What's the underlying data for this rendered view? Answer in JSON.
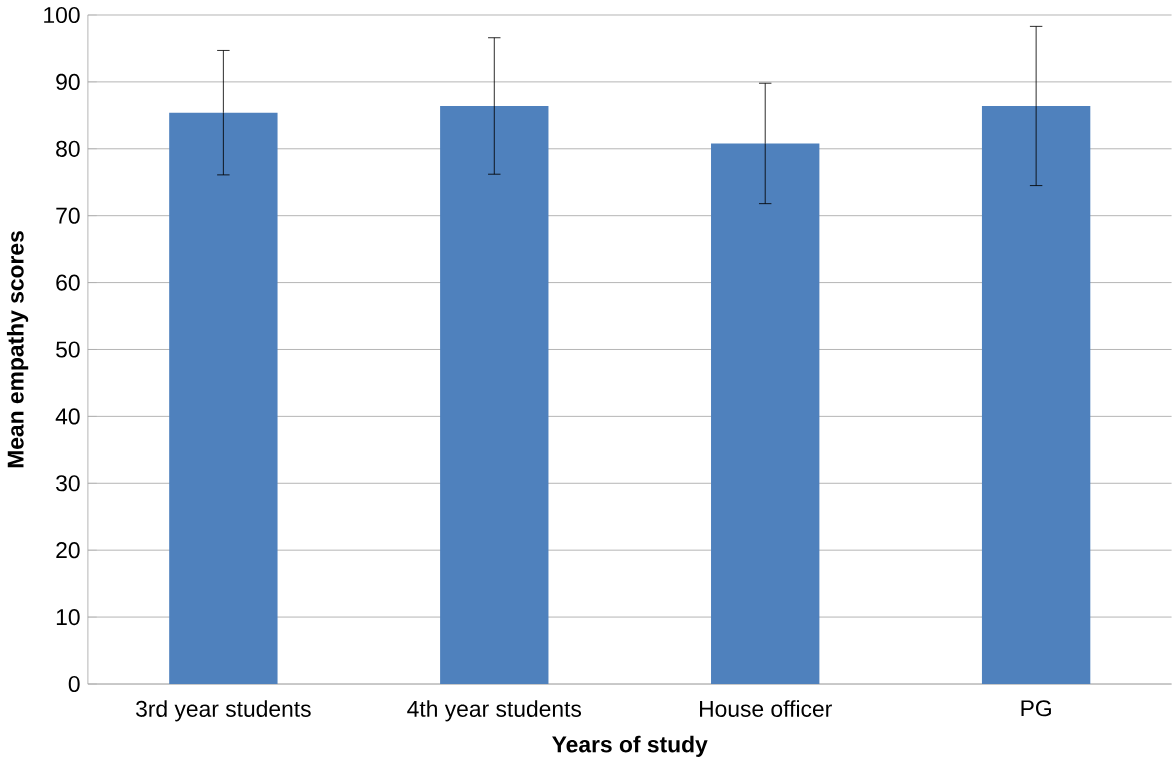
{
  "chart_data": {
    "type": "bar",
    "xlabel": "Years of study",
    "ylabel": "Mean empathy scores",
    "categories": [
      "3rd year students",
      "4th year students",
      "House officer",
      "PG"
    ],
    "values": [
      85.4,
      86.4,
      80.8,
      86.4
    ],
    "errors": [
      9.3,
      10.2,
      9.0,
      11.9
    ],
    "color": "#4f81bd",
    "ylim": [
      0,
      100
    ],
    "yticks": [
      0,
      10,
      20,
      30,
      40,
      50,
      60,
      70,
      80,
      90,
      100
    ],
    "grid": "y"
  }
}
